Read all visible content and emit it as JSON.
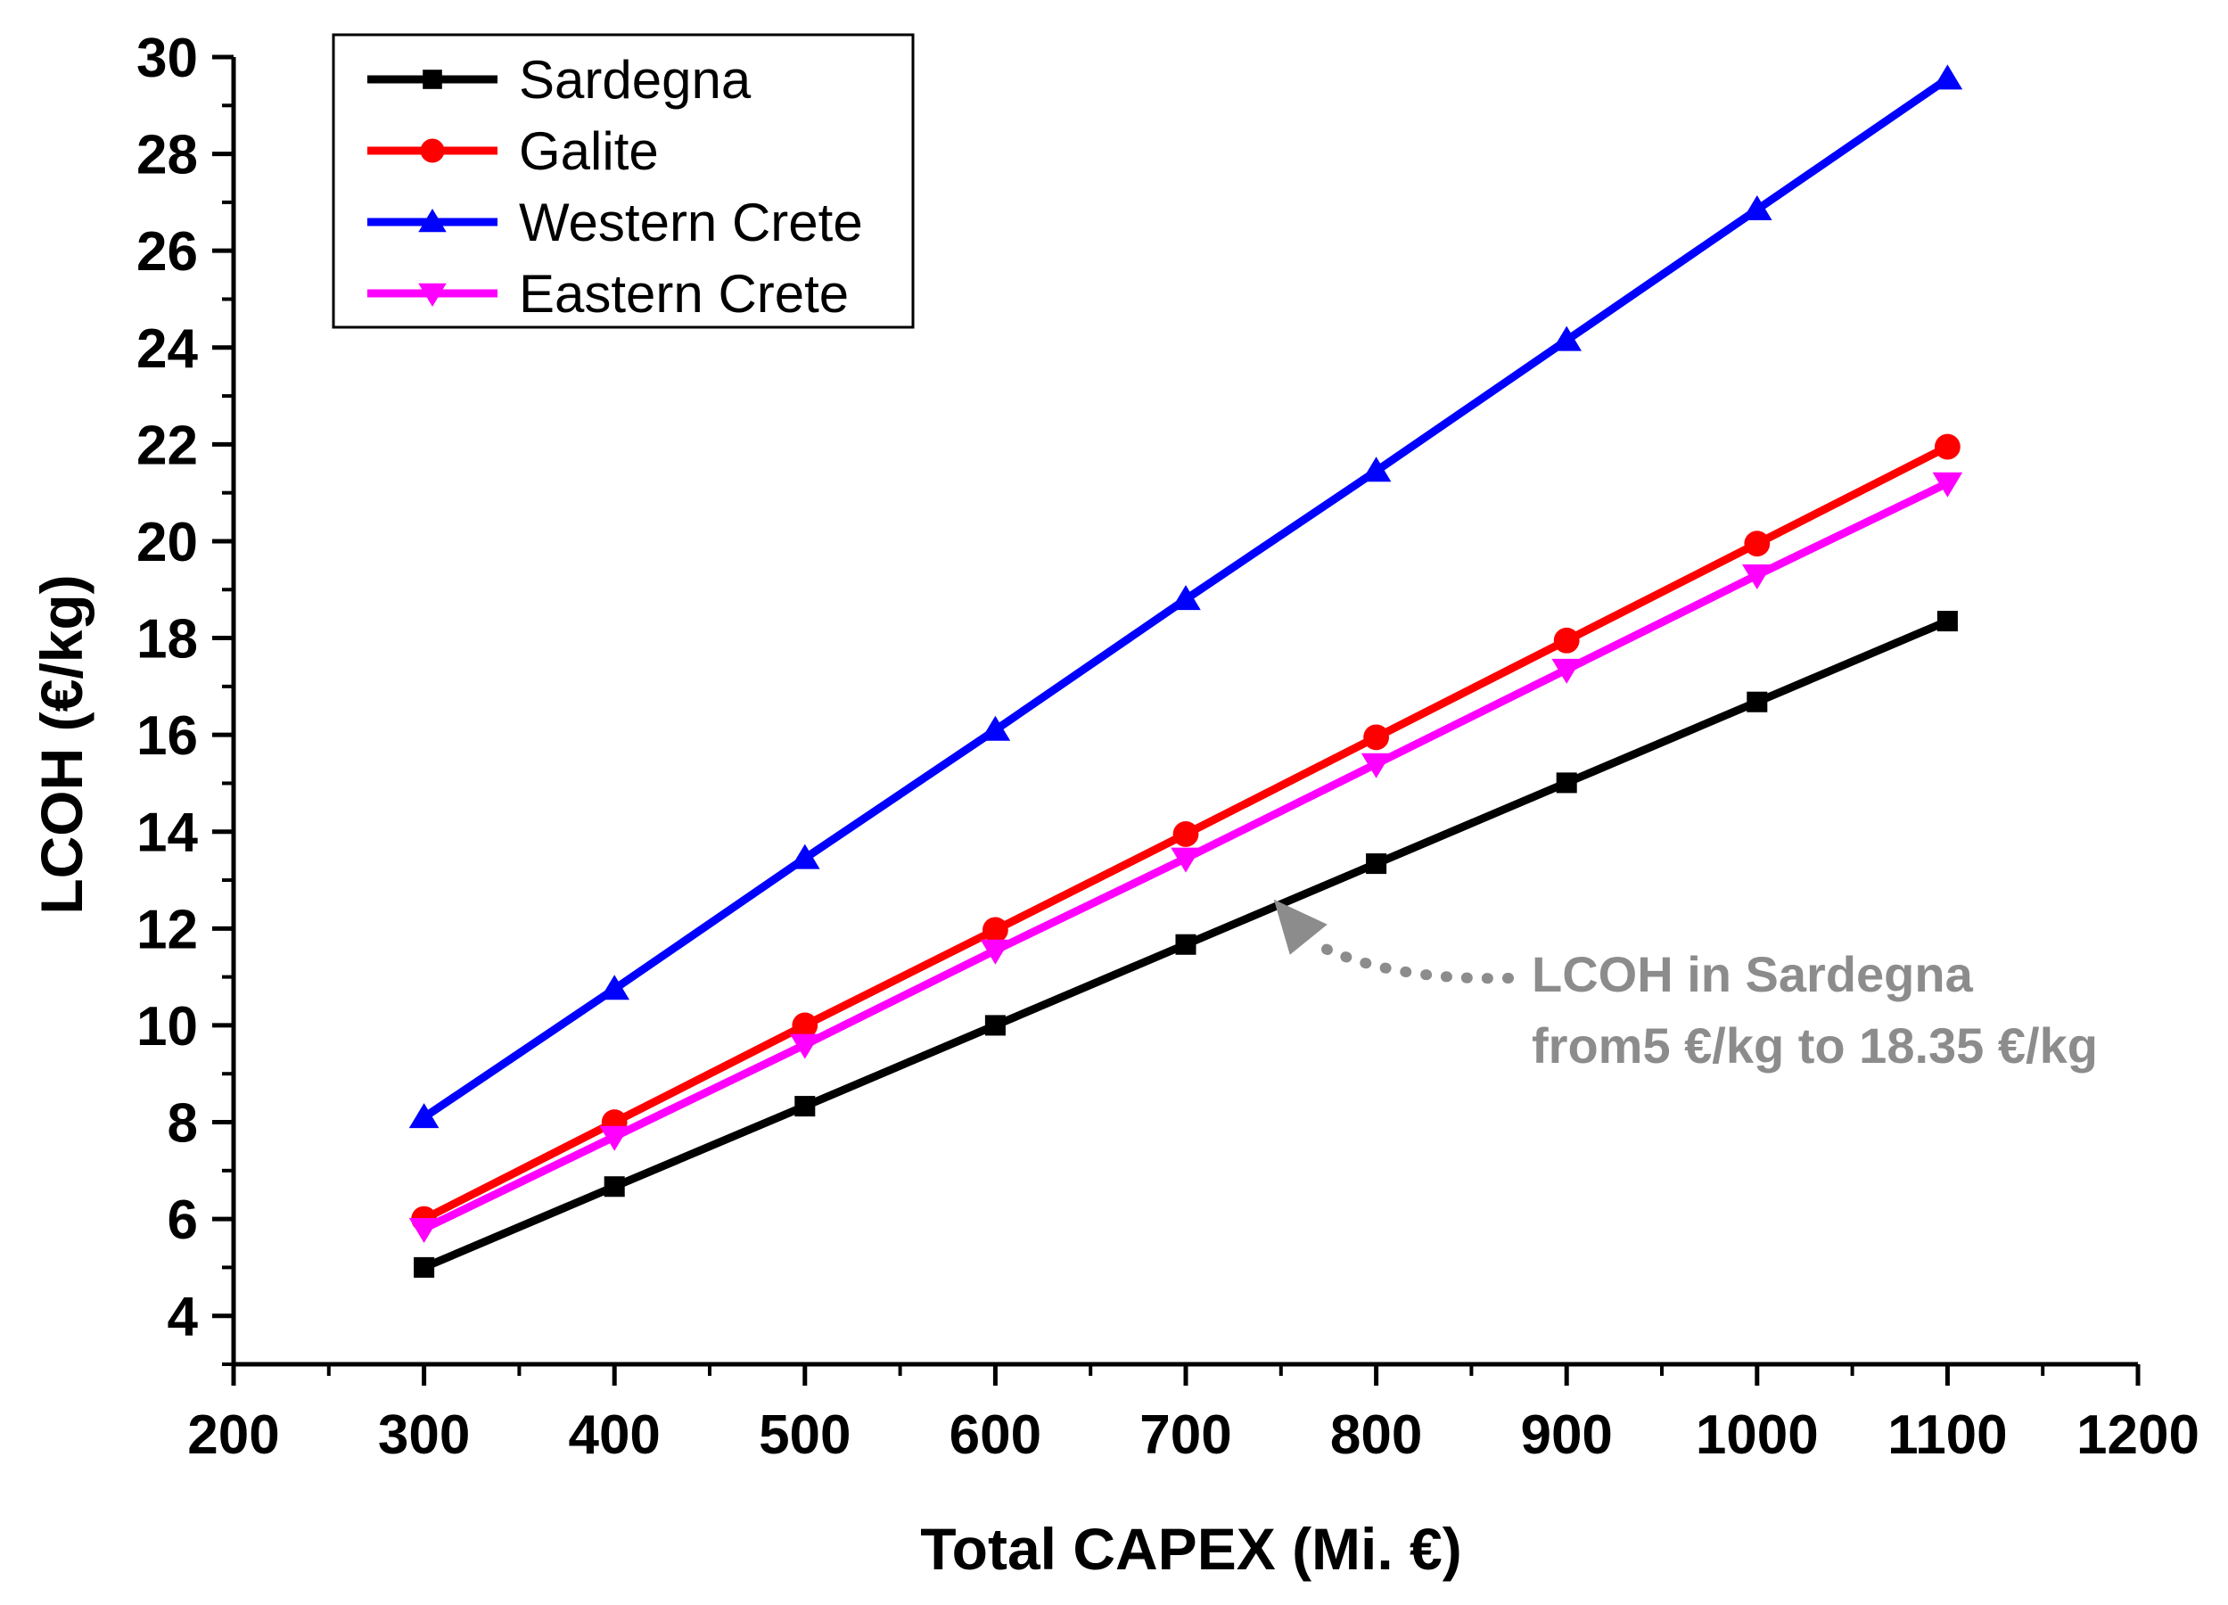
{
  "chart_data": {
    "type": "line",
    "title": "",
    "xlabel": "Total CAPEX (Mi. €)",
    "ylabel": "LCOH (€/kg)",
    "xlim": [
      200,
      1200
    ],
    "ylim": [
      3,
      30
    ],
    "xticks": [
      200,
      300,
      400,
      500,
      600,
      700,
      800,
      900,
      1000,
      1100,
      1200
    ],
    "yticks": [
      4,
      6,
      8,
      10,
      12,
      14,
      16,
      18,
      20,
      22,
      24,
      26,
      28,
      30
    ],
    "x": [
      300,
      400,
      500,
      600,
      700,
      800,
      900,
      1000,
      1100
    ],
    "series": [
      {
        "name": "Sardegna",
        "color": "#000000",
        "marker": "square",
        "values": [
          5.0,
          6.67,
          8.33,
          10.0,
          11.67,
          13.34,
          15.01,
          16.68,
          18.35
        ]
      },
      {
        "name": "Galite",
        "color": "#ff0000",
        "marker": "circle",
        "values": [
          6.0,
          8.0,
          10.0,
          11.97,
          13.95,
          15.95,
          17.95,
          19.95,
          21.95
        ]
      },
      {
        "name": "Western Crete",
        "color": "#0000ff",
        "marker": "triangle-up",
        "values": [
          8.1,
          10.75,
          13.45,
          16.1,
          18.8,
          21.45,
          24.15,
          26.85,
          29.55
        ]
      },
      {
        "name": "Eastern Crete",
        "color": "#ff00ff",
        "marker": "triangle-down",
        "values": [
          5.8,
          7.7,
          9.6,
          11.55,
          13.45,
          15.4,
          17.35,
          19.3,
          21.2
        ]
      }
    ],
    "legend_position": "top-left",
    "annotation": {
      "lines": [
        "LCOH in Sardegna",
        "from5 €/kg to 18.35 €/kg"
      ],
      "points_to_x": 750,
      "color": "#8c8c8c"
    }
  }
}
